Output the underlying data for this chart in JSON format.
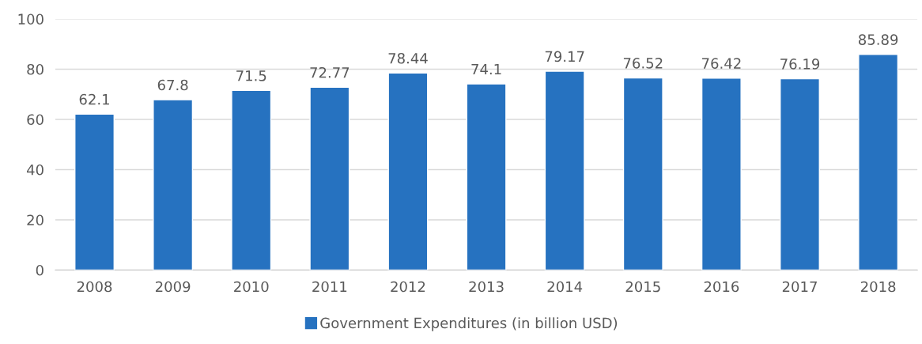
{
  "chart_data": {
    "type": "bar",
    "categories": [
      "2008",
      "2009",
      "2010",
      "2011",
      "2012",
      "2013",
      "2014",
      "2015",
      "2016",
      "2017",
      "2018"
    ],
    "series": [
      {
        "name": "Government Expenditures (in billion USD)",
        "color": "#2672c0",
        "values": [
          62.1,
          67.8,
          71.5,
          72.77,
          78.44,
          74.1,
          79.17,
          76.52,
          76.42,
          76.19,
          85.89
        ]
      }
    ],
    "ylim": [
      0,
      100
    ],
    "yticks": [
      0,
      20,
      40,
      60,
      80,
      100
    ],
    "grid": "y",
    "legend": "bottom",
    "data_labels": true
  }
}
